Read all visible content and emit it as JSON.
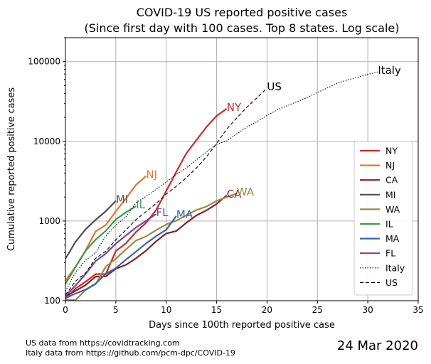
{
  "chart_data": {
    "type": "line",
    "title_lines": [
      "COVID-19 US reported positive cases",
      "(Since first day with 100 cases. Top 8 states. Log scale)"
    ],
    "xlabel": "Days since 100th reported positive case",
    "ylabel": "Cumulative reported positive cases",
    "xlim": [
      0,
      35
    ],
    "ylim": [
      100,
      200000
    ],
    "yscale": "log",
    "grid": true,
    "legend_position": "right",
    "x_ticks": [
      "0",
      "5",
      "10",
      "15",
      "20",
      "25",
      "30",
      "35"
    ],
    "x_tick_values": [
      0,
      5,
      10,
      15,
      20,
      25,
      30,
      35
    ],
    "y_ticks": [
      "100",
      "1000",
      "10000",
      "100000"
    ],
    "y_tick_values": [
      100,
      1000,
      10000,
      100000
    ],
    "series": [
      {
        "name": "NY",
        "color": "#cc2a2a",
        "style": "solid",
        "end_label": "NY",
        "x": [
          0,
          1,
          2,
          3,
          4,
          5,
          6,
          7,
          8,
          9,
          10,
          11,
          12,
          13,
          14,
          15,
          16
        ],
        "y": [
          106,
          142,
          173,
          216,
          216,
          421,
          524,
          729,
          950,
          1374,
          2382,
          4152,
          7102,
          10356,
          15168,
          20875,
          25665
        ]
      },
      {
        "name": "NJ",
        "color": "#e0782f",
        "style": "solid",
        "end_label": "NJ",
        "x": [
          0,
          1,
          2,
          3,
          4,
          5,
          6,
          7,
          8
        ],
        "y": [
          178,
          267,
          427,
          742,
          890,
          1327,
          1914,
          2844,
          3675
        ]
      },
      {
        "name": "CA",
        "color": "#8b1e24",
        "style": "solid",
        "end_label": "CA",
        "x": [
          0,
          1,
          2,
          3,
          4,
          5,
          6,
          7,
          8,
          9,
          10,
          11,
          12,
          13,
          14,
          15,
          16
        ],
        "y": [
          114,
          133,
          157,
          201,
          202,
          252,
          282,
          340,
          426,
          557,
          698,
          751,
          952,
          1177,
          1364,
          1642,
          2102
        ]
      },
      {
        "name": "MI",
        "color": "#4f4f4f",
        "style": "solid",
        "end_label": "MI",
        "x": [
          0,
          1,
          2,
          3,
          4,
          5
        ],
        "y": [
          336,
          549,
          787,
          1037,
          1328,
          1791
        ]
      },
      {
        "name": "WA",
        "color": "#9b8a45",
        "style": "solid",
        "end_label": "WA",
        "x": [
          0,
          1,
          2,
          3,
          4,
          5,
          6,
          7,
          8,
          9,
          10,
          11,
          12,
          13,
          14,
          15,
          16,
          17
        ],
        "y": [
          102,
          102,
          136,
          162,
          267,
          337,
          441,
          568,
          642,
          769,
          904,
          1012,
          1187,
          1376,
          1524,
          1793,
          1996,
          2221
        ]
      },
      {
        "name": "IL",
        "color": "#3e9a52",
        "style": "solid",
        "end_label": "IL",
        "x": [
          0,
          1,
          2,
          3,
          4,
          5,
          6,
          7
        ],
        "y": [
          162,
          265,
          422,
          585,
          753,
          1049,
          1285,
          1535
        ]
      },
      {
        "name": "MA",
        "color": "#3a63b0",
        "style": "solid",
        "end_label": "MA",
        "x": [
          0,
          1,
          2,
          3,
          4,
          5,
          6,
          7,
          8,
          9,
          10,
          11
        ],
        "y": [
          108,
          123,
          138,
          164,
          218,
          256,
          328,
          413,
          525,
          646,
          777,
          1159
        ]
      },
      {
        "name": "FL",
        "color": "#6e4a9a",
        "style": "solid",
        "end_label": "FL",
        "x": [
          0,
          1,
          2,
          3,
          4,
          5,
          6,
          7,
          8,
          9
        ],
        "y": [
          115,
          155,
          216,
          314,
          390,
          520,
          658,
          830,
          1007,
          1227
        ]
      },
      {
        "name": "Italy",
        "color": "#000000",
        "style": "dotted",
        "end_label": "Italy",
        "x": [
          0,
          1,
          2,
          3,
          4,
          5,
          6,
          7,
          8,
          9,
          10,
          11,
          12,
          13,
          14,
          15,
          16,
          17,
          18,
          19,
          20,
          21,
          22,
          23,
          24,
          25,
          26,
          27,
          28,
          29,
          30,
          31
        ],
        "y": [
          132,
          229,
          322,
          400,
          650,
          888,
          1128,
          1694,
          2036,
          2502,
          3089,
          3858,
          4636,
          5883,
          7375,
          9172,
          10149,
          12462,
          15113,
          17660,
          21157,
          24747,
          27980,
          31506,
          35713,
          41035,
          47021,
          53578,
          59138,
          63927,
          69176,
          74386
        ]
      },
      {
        "name": "US",
        "color": "#000000",
        "style": "dashed",
        "end_label": "US",
        "x": [
          0,
          1,
          2,
          3,
          4,
          5,
          6,
          7,
          8,
          9,
          10,
          11,
          12,
          13,
          14,
          15,
          16,
          17,
          18,
          19,
          20
        ],
        "y": [
          118,
          176,
          223,
          341,
          417,
          584,
          773,
          1043,
          1315,
          1663,
          2179,
          2727,
          3499,
          4632,
          6421,
          9415,
          14250,
          19624,
          26747,
          35224,
          46450
        ]
      }
    ]
  },
  "footnotes": [
    "US data from https://covidtracking.com",
    "Italy data from https://github.com/pcm-dpc/COVID-19"
  ],
  "date_label": "24 Mar 2020"
}
